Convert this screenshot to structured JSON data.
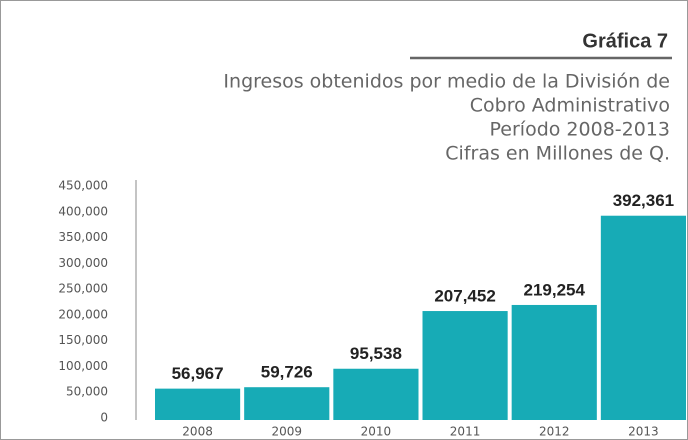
{
  "chart_data": {
    "type": "bar",
    "title": "Gráfica 7",
    "subtitle": [
      "Ingresos obtenidos por medio de la División de",
      "Cobro Administrativo",
      "Período 2008-2013",
      "Cifras en Millones de Q."
    ],
    "categories": [
      "2008",
      "2009",
      "2010",
      "2011",
      "2012",
      "2013"
    ],
    "values": [
      56967,
      59726,
      95538,
      207452,
      219254,
      392361
    ],
    "value_labels": [
      "56,967",
      "59,726",
      "95,538",
      "207,452",
      "219,254",
      "392,361"
    ],
    "color": "#17abb6",
    "ylim": [
      0,
      450000
    ],
    "yticks": [
      0,
      {
        "value": 50000,
        "label": "50,000"
      },
      {
        "value": 100000,
        "label": "100,000"
      },
      {
        "value": 150000,
        "label": "150,000"
      },
      {
        "value": 200000,
        "label": "200,000"
      },
      {
        "value": 250000,
        "label": "250,000"
      },
      {
        "value": 300000,
        "label": "300,000"
      },
      {
        "value": 350000,
        "label": "350,000"
      },
      {
        "value": 400000,
        "label": "400,000"
      },
      {
        "value": 450000,
        "label": "450,000"
      }
    ]
  }
}
